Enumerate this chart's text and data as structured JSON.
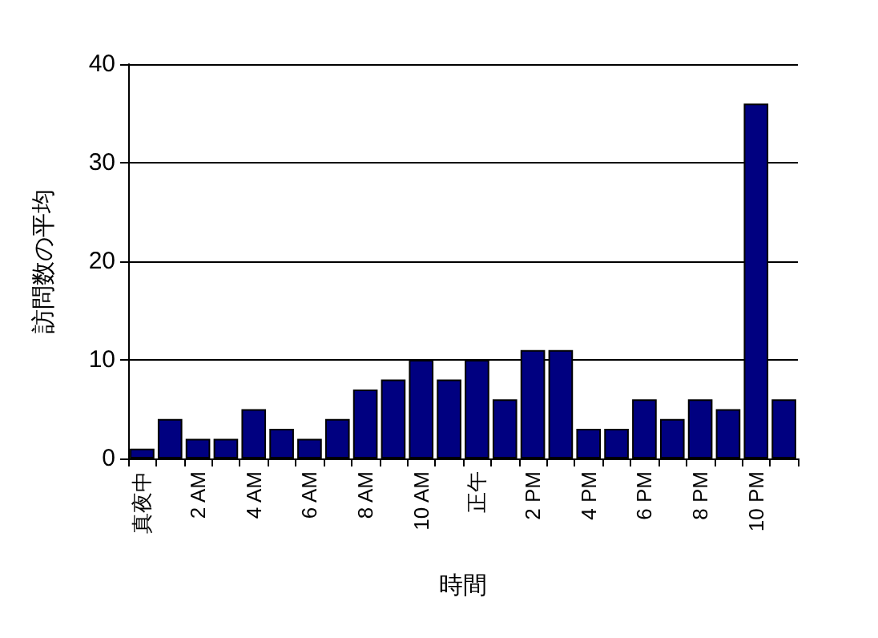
{
  "chart_data": {
    "type": "bar",
    "xlabel": "時間",
    "ylabel": "訪問数の平均",
    "categories": [
      "真夜中",
      null,
      "2 AM",
      null,
      "4 AM",
      null,
      "6 AM",
      null,
      "8 AM",
      null,
      "10 AM",
      null,
      "正午",
      null,
      "2 PM",
      null,
      "4 PM",
      null,
      "6 PM",
      null,
      "8 PM",
      null,
      "10 PM",
      null
    ],
    "values": [
      1,
      4,
      2,
      2,
      5,
      3,
      2,
      4,
      7,
      8,
      10,
      8,
      10,
      6,
      11,
      11,
      3,
      3,
      6,
      4,
      6,
      5,
      36,
      6
    ],
    "color": "#000080",
    "ylim": [
      0,
      40
    ],
    "yticks": [
      0,
      10,
      20,
      30,
      40
    ],
    "grid": "y"
  }
}
